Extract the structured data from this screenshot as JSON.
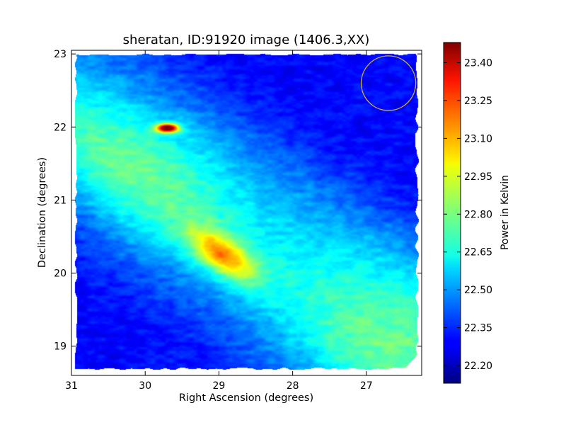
{
  "chart_data": {
    "type": "heatmap",
    "title": "sheratan, ID:91920 image (1406.3,XX)",
    "xlabel": "Right Ascension (degrees)",
    "ylabel": "Declination (degrees)",
    "xlim": [
      31.0,
      26.25
    ],
    "ylim": [
      18.6,
      23.05
    ],
    "x_ticks": [
      31,
      30,
      29,
      28,
      27
    ],
    "y_ticks": [
      19,
      20,
      21,
      22,
      23
    ],
    "colorbar": {
      "label": "Power in Kelvin",
      "range": [
        22.13,
        23.48
      ],
      "ticks": [
        "22.20",
        "22.35",
        "22.50",
        "22.65",
        "22.80",
        "22.95",
        "23.10",
        "23.25",
        "23.40"
      ],
      "colormap": "jet"
    },
    "features": {
      "band": {
        "from_ra": 31.0,
        "from_dec": 22.0,
        "to_ra": 26.6,
        "to_dec": 18.9,
        "peak_value": 22.78,
        "description_values": "diagonal bright ridge"
      },
      "sources": [
        {
          "ra": 28.95,
          "dec": 20.25,
          "value": 23.3
        },
        {
          "ra": 29.7,
          "dec": 21.99,
          "value": 23.35
        }
      ],
      "beam_circle": {
        "ra": 26.7,
        "dec": 22.6,
        "radius_deg": 0.37,
        "color": "#d4b62a"
      },
      "background_value": 22.3
    },
    "grid": false
  }
}
